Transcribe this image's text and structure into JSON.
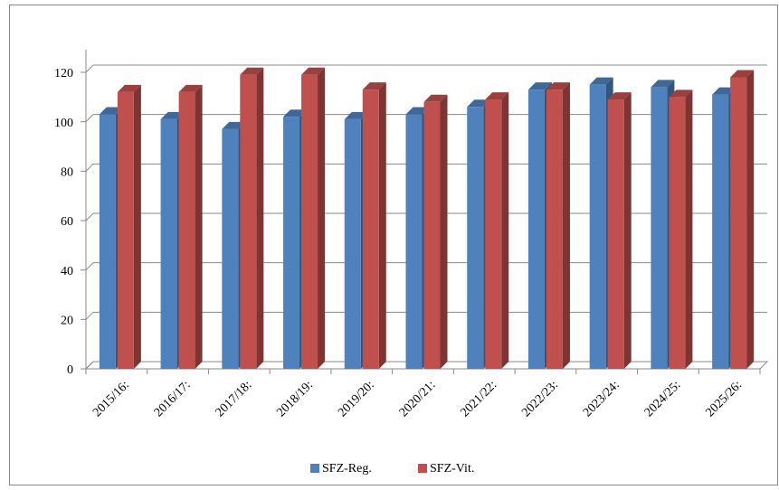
{
  "chart_data": {
    "type": "bar3d",
    "categories": [
      "2015/16:",
      "2016/17:",
      "2017/18:",
      "2018/19:",
      "2019/20:",
      "2020/21:",
      "2021/22:",
      "2022/23:",
      "2023/24:",
      "2024/25:",
      "2025/26:"
    ],
    "series": [
      {
        "name": "SFZ-Reg.",
        "color": "#4f81bd",
        "values": [
          103,
          101,
          97,
          102,
          101,
          103,
          106,
          113,
          115,
          114,
          111
        ]
      },
      {
        "name": "SFZ-Vit.",
        "color": "#c0504d",
        "values": [
          112,
          112,
          119,
          119,
          113,
          108,
          109,
          113,
          109,
          110,
          118
        ]
      }
    ],
    "ylim": [
      0,
      120
    ],
    "yticks": [
      0,
      20,
      40,
      60,
      80,
      100,
      120
    ],
    "grid": true,
    "legend": "bottom"
  }
}
